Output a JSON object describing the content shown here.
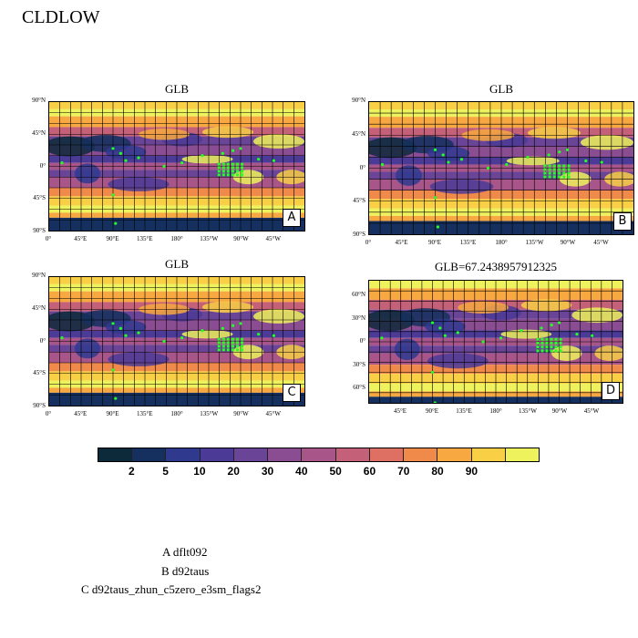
{
  "page": {
    "title": "CLDLOW"
  },
  "panels": [
    {
      "id": "A",
      "title": "GLB",
      "letter": "A",
      "yticks": [
        "90°N",
        "45°N",
        "0°",
        "45°S",
        "90°S"
      ],
      "xticks": [
        "0°",
        "45°E",
        "90°E",
        "135°E",
        "180°",
        "135°W",
        "90°W",
        "45°W"
      ]
    },
    {
      "id": "B",
      "title": "GLB",
      "letter": "B",
      "yticks": [
        "90°N",
        "45°N",
        "0°",
        "45°S",
        "90°S"
      ],
      "xticks": [
        "0°",
        "45°E",
        "90°E",
        "135°E",
        "180°",
        "135°W",
        "90°W",
        "45°W"
      ]
    },
    {
      "id": "C",
      "title": "GLB",
      "letter": "C",
      "yticks": [
        "90°N",
        "45°N",
        "0°",
        "45°S",
        "90°S"
      ],
      "xticks": [
        "0°",
        "45°E",
        "90°E",
        "135°E",
        "180°",
        "135°W",
        "90°W",
        "45°W"
      ]
    },
    {
      "id": "D",
      "title": "GLB=67.2438957912325",
      "letter": "D",
      "yticks": [
        "60°N",
        "30°N",
        "0°",
        "30°S",
        "60°S"
      ],
      "xticks": [
        "45°E",
        "90°E",
        "135°E",
        "180°",
        "135°W",
        "90°W",
        "45°W"
      ]
    }
  ],
  "colorbar": {
    "colors": [
      "#0d2a3a",
      "#15305e",
      "#2f3a8f",
      "#4b3a96",
      "#6a4496",
      "#8a4d92",
      "#a8568a",
      "#c46078",
      "#dd7062",
      "#f08a4a",
      "#f8a840",
      "#f8cf45",
      "#eef25c"
    ],
    "labels": [
      "2",
      "5",
      "10",
      "20",
      "30",
      "40",
      "50",
      "60",
      "70",
      "80",
      "90"
    ]
  },
  "legend": {
    "lines": [
      "A  dflt092",
      "B  d92taus",
      "C  d92taus_zhun_c5zero_e3sm_flags2"
    ]
  },
  "chart_data": [
    {
      "type": "heatmap",
      "title": "GLB",
      "x_ticks": [
        "0°",
        "45°E",
        "90°E",
        "135°E",
        "180°",
        "135°W",
        "90°W",
        "45°W"
      ],
      "y_ticks": [
        "90°N",
        "45°N",
        "0°",
        "45°S",
        "90°S"
      ],
      "levels": [
        2,
        5,
        10,
        20,
        30,
        40,
        50,
        60,
        70,
        80,
        90
      ]
    },
    {
      "type": "heatmap",
      "title": "GLB",
      "x_ticks": [
        "0°",
        "45°E",
        "90°E",
        "135°E",
        "180°",
        "135°W",
        "90°W",
        "45°W"
      ],
      "y_ticks": [
        "90°N",
        "45°N",
        "0°",
        "45°S",
        "90°S"
      ],
      "levels": [
        2,
        5,
        10,
        20,
        30,
        40,
        50,
        60,
        70,
        80,
        90
      ]
    },
    {
      "type": "heatmap",
      "title": "GLB",
      "x_ticks": [
        "0°",
        "45°E",
        "90°E",
        "135°E",
        "180°",
        "135°W",
        "90°W",
        "45°W"
      ],
      "y_ticks": [
        "90°N",
        "45°N",
        "0°",
        "45°S",
        "90°S"
      ],
      "levels": [
        2,
        5,
        10,
        20,
        30,
        40,
        50,
        60,
        70,
        80,
        90
      ]
    },
    {
      "type": "heatmap",
      "title": "GLB=67.2438957912325",
      "x_ticks": [
        "45°E",
        "90°E",
        "135°E",
        "180°",
        "135°W",
        "90°W",
        "45°W"
      ],
      "y_ticks": [
        "60°N",
        "30°N",
        "0°",
        "30°S",
        "60°S"
      ],
      "levels": [
        2,
        5,
        10,
        20,
        30,
        40,
        50,
        60,
        70,
        80,
        90
      ]
    }
  ]
}
